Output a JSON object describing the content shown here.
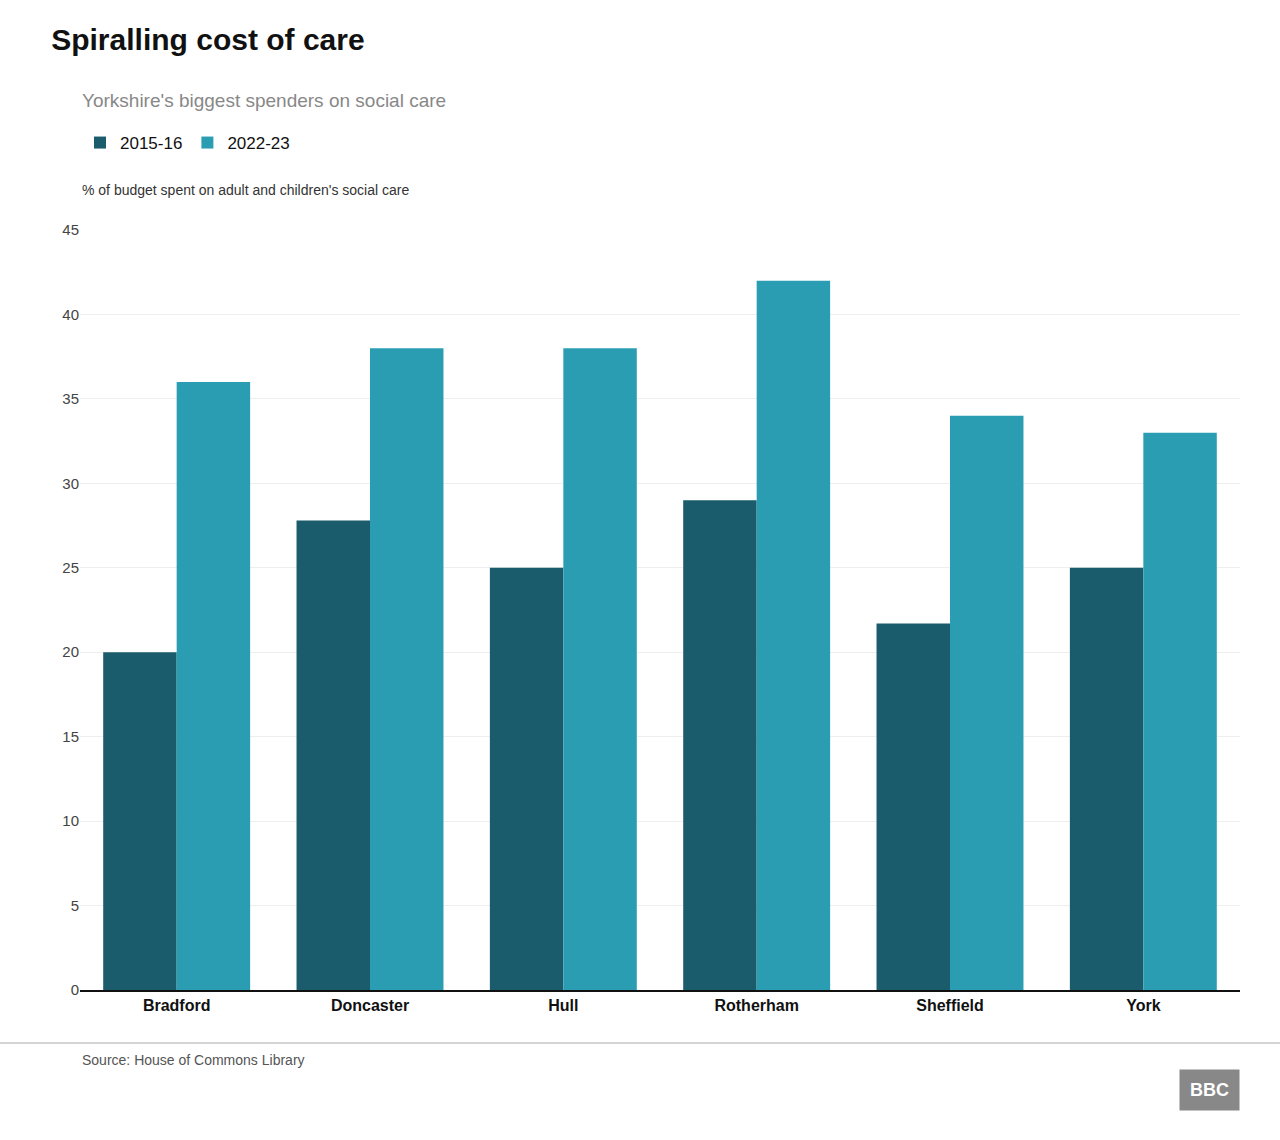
{
  "chart_data": {
    "type": "bar",
    "title": "Spiralling cost of care",
    "subtitle": "Yorkshire's biggest spenders on social care",
    "ylabel": "% of budget spent on adult and children's social care",
    "annotations": [
      "Source: House of Commons Library",
      "BBC"
    ],
    "categories": [
      "Bradford",
      "Doncaster",
      "Hull",
      "Rotherham",
      "Sheffield",
      "York"
    ],
    "series": [
      {
        "name": "2015-16",
        "color": "#1a5c6b",
        "values": [
          20.0,
          27.8,
          25.0,
          29.0,
          21.7,
          25.0
        ]
      },
      {
        "name": "2022-23",
        "color": "#2b9db3",
        "values": [
          36.0,
          38.0,
          38.0,
          42.0,
          34.0,
          33.0
        ]
      }
    ],
    "ylim": [
      0,
      45
    ],
    "yticks": [
      0,
      5,
      10,
      15,
      20,
      25,
      30,
      35,
      40,
      45
    ],
    "grid": true,
    "legend": "top left"
  }
}
